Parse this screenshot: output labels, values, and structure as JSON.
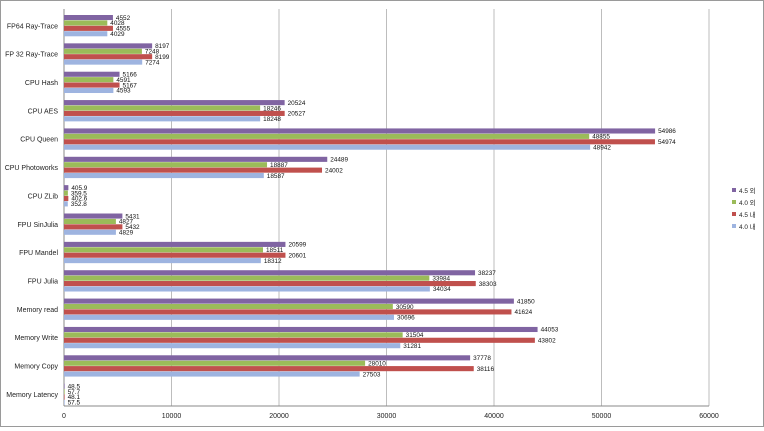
{
  "chart_data": {
    "type": "bar",
    "orientation": "horizontal",
    "categories": [
      "FP64 Ray-Trace",
      "FP 32 Ray-Trace",
      "CPU Hash",
      "CPU AES",
      "CPU Queen",
      "CPU Photoworks",
      "CPU ZLib",
      "FPU SinJulia",
      "FPU Mandel",
      "FPU Julia",
      "Memory read",
      "Memory Write",
      "Memory Copy",
      "Memory Latency"
    ],
    "series": [
      {
        "name": "4.5 외",
        "color": "#8064a2",
        "values": [
          4552,
          8197,
          5166,
          20524,
          54986,
          24489,
          405.9,
          5431,
          20599,
          38237,
          41850,
          44053,
          37778,
          48.5
        ]
      },
      {
        "name": "4.0 외",
        "color": "#9bbb59",
        "values": [
          4028,
          7248,
          4591,
          18246,
          48855,
          18887,
          359.5,
          4827,
          18511,
          33984,
          30590,
          31504,
          28010,
          57.7
        ]
      },
      {
        "name": "4.5 내",
        "color": "#c0504d",
        "values": [
          4555,
          8199,
          5167,
          20527,
          54974,
          24002,
          402.6,
          5432,
          20601,
          38303,
          41624,
          43802,
          38116,
          48.1
        ]
      },
      {
        "name": "4.0 내",
        "color": "#9eb4e0",
        "values": [
          4029,
          7274,
          4593,
          18248,
          48942,
          18587,
          352.8,
          4829,
          18312,
          34034,
          30696,
          31281,
          27503,
          57.5
        ]
      }
    ],
    "value_labels": [
      [
        "4552",
        "8197",
        "5166",
        "20524",
        "54986",
        "24489",
        "405.9",
        "5431",
        "20599",
        "38237",
        "41850",
        "44053",
        "37778",
        "48.5"
      ],
      [
        "4028",
        "7248",
        "4591",
        "18246",
        "48855",
        "18887",
        "359.5",
        "4827",
        "18511",
        "33984",
        "30590",
        "31504",
        "28010",
        "57.7"
      ],
      [
        "4555",
        "8199",
        "5167",
        "20527",
        "54974",
        "24002",
        "402.6",
        "5432",
        "20601",
        "38303",
        "41624",
        "43802",
        "38116",
        "48.1"
      ],
      [
        "4029",
        "7274",
        "4593",
        "18248",
        "48942",
        "18587",
        "352.8",
        "4829",
        "18312",
        "34034",
        "30696",
        "31281",
        "27503",
        "57.5"
      ]
    ],
    "xlim": [
      0,
      60000
    ],
    "xticks": [
      0,
      10000,
      20000,
      30000,
      40000,
      50000,
      60000
    ],
    "xtick_labels": [
      "0",
      "10000",
      "20000",
      "30000",
      "40000",
      "50000",
      "60000"
    ],
    "grid": "vertical",
    "legend": "right",
    "title": "",
    "xlabel": "",
    "ylabel": ""
  }
}
